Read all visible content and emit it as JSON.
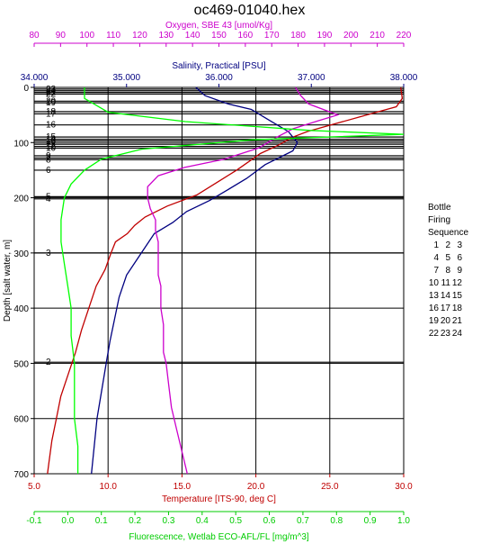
{
  "title": "oc469-01040.hex",
  "axes": {
    "oxygen": {
      "label": "Oxygen, SBE 43 [umol/Kg]",
      "range": [
        80,
        220
      ],
      "ticks": [
        80,
        90,
        100,
        110,
        120,
        130,
        140,
        150,
        160,
        170,
        180,
        190,
        200,
        210,
        220
      ],
      "color": "#cc00cc"
    },
    "salinity": {
      "label": "Salinity, Practical [PSU]",
      "range": [
        34,
        38
      ],
      "ticks": [
        "34.000",
        "35.000",
        "36.000",
        "37.000",
        "38.000"
      ],
      "color": "#000080"
    },
    "temperature": {
      "label": "Temperature [ITS-90, deg C]",
      "range": [
        5,
        30
      ],
      "ticks": [
        "5.0",
        "10.0",
        "15.0",
        "20.0",
        "25.0",
        "30.0"
      ],
      "color": "#c00000"
    },
    "fluorescence": {
      "label": "Fluorescence, Wetlab ECO-AFL/FL [mg/m^3]",
      "range": [
        -0.1,
        1.0
      ],
      "ticks": [
        "-0.1",
        "0.0",
        "0.1",
        "0.2",
        "0.3",
        "0.4",
        "0.5",
        "0.6",
        "0.7",
        "0.8",
        "0.9",
        "1.0"
      ],
      "color": "#00cc00"
    },
    "depth": {
      "label": "Depth [salt water, m]",
      "range": [
        0,
        700
      ],
      "ticks": [
        0,
        100,
        200,
        300,
        400,
        500,
        600,
        700
      ]
    }
  },
  "bottle_markers": [
    {
      "label": "23",
      "depth": 3
    },
    {
      "label": "24",
      "depth": 6
    },
    {
      "label": "21",
      "depth": 9
    },
    {
      "label": "22",
      "depth": 12
    },
    {
      "label": "20",
      "depth": 25
    },
    {
      "label": "19",
      "depth": 28
    },
    {
      "label": "18",
      "depth": 44
    },
    {
      "label": "17",
      "depth": 48
    },
    {
      "label": "16",
      "depth": 68
    },
    {
      "label": "15",
      "depth": 90
    },
    {
      "label": "14",
      "depth": 94
    },
    {
      "label": "13",
      "depth": 97
    },
    {
      "label": "11",
      "depth": 103
    },
    {
      "label": "12",
      "depth": 107
    },
    {
      "label": "10",
      "depth": 110
    },
    {
      "label": "9",
      "depth": 124
    },
    {
      "label": "7",
      "depth": 128
    },
    {
      "label": "8",
      "depth": 131
    },
    {
      "label": "6",
      "depth": 150
    },
    {
      "label": "5",
      "depth": 198
    },
    {
      "label": "4",
      "depth": 202
    },
    {
      "label": "3",
      "depth": 300
    },
    {
      "label": "2",
      "depth": 498
    }
  ],
  "legend": {
    "title_lines": [
      "Bottle",
      "Firing",
      "Sequence"
    ],
    "rows": [
      [
        "1",
        "2",
        "3"
      ],
      [
        "4",
        "5",
        "6"
      ],
      [
        "7",
        "8",
        "9"
      ],
      [
        "10",
        "11",
        "12"
      ],
      [
        "13",
        "14",
        "15"
      ],
      [
        "16",
        "17",
        "18"
      ],
      [
        "19",
        "20",
        "21"
      ],
      [
        "22",
        "23",
        "24"
      ]
    ]
  },
  "chart_data": {
    "type": "line",
    "y_axis": "depth",
    "ylim": [
      0,
      700
    ],
    "y_inverted": true,
    "grid": true,
    "series": [
      {
        "axis": "temperature",
        "color": "#c00000",
        "points": [
          [
            29.8,
            0
          ],
          [
            29.9,
            20
          ],
          [
            29.5,
            35
          ],
          [
            27.5,
            50
          ],
          [
            25.5,
            65
          ],
          [
            23.5,
            80
          ],
          [
            22.5,
            90
          ],
          [
            21.5,
            105
          ],
          [
            20.3,
            120
          ],
          [
            19.5,
            135
          ],
          [
            18.7,
            150
          ],
          [
            17.5,
            170
          ],
          [
            16.0,
            195
          ],
          [
            14.0,
            215
          ],
          [
            12.5,
            235
          ],
          [
            11.8,
            250
          ],
          [
            11.3,
            265
          ],
          [
            10.5,
            280
          ],
          [
            10.2,
            300
          ],
          [
            9.8,
            330
          ],
          [
            9.2,
            360
          ],
          [
            8.7,
            400
          ],
          [
            8.2,
            440
          ],
          [
            7.8,
            480
          ],
          [
            7.3,
            520
          ],
          [
            6.8,
            560
          ],
          [
            6.5,
            600
          ],
          [
            6.2,
            640
          ],
          [
            6.0,
            680
          ],
          [
            5.9,
            700
          ]
        ]
      },
      {
        "axis": "salinity",
        "color": "#000080",
        "points": [
          [
            35.75,
            0
          ],
          [
            35.85,
            15
          ],
          [
            36.1,
            30
          ],
          [
            36.35,
            40
          ],
          [
            36.55,
            60
          ],
          [
            36.75,
            80
          ],
          [
            36.85,
            100
          ],
          [
            36.8,
            115
          ],
          [
            36.5,
            140
          ],
          [
            36.3,
            165
          ],
          [
            36.1,
            185
          ],
          [
            35.9,
            205
          ],
          [
            35.65,
            225
          ],
          [
            35.5,
            245
          ],
          [
            35.3,
            265
          ],
          [
            35.2,
            290
          ],
          [
            35.12,
            310
          ],
          [
            35.0,
            340
          ],
          [
            34.92,
            380
          ],
          [
            34.87,
            420
          ],
          [
            34.82,
            460
          ],
          [
            34.78,
            500
          ],
          [
            34.73,
            550
          ],
          [
            34.68,
            600
          ],
          [
            34.65,
            650
          ],
          [
            34.62,
            700
          ]
        ]
      },
      {
        "axis": "oxygen",
        "color": "#cc00cc",
        "points": [
          [
            179,
            0
          ],
          [
            181,
            15
          ],
          [
            184,
            30
          ],
          [
            195,
            50
          ],
          [
            188,
            60
          ],
          [
            178,
            75
          ],
          [
            172,
            90
          ],
          [
            165,
            110
          ],
          [
            152,
            130
          ],
          [
            137,
            145
          ],
          [
            127,
            160
          ],
          [
            123,
            180
          ],
          [
            123,
            200
          ],
          [
            124,
            220
          ],
          [
            126,
            240
          ],
          [
            126,
            260
          ],
          [
            127,
            280
          ],
          [
            127,
            300
          ],
          [
            127,
            320
          ],
          [
            127,
            340
          ],
          [
            128,
            360
          ],
          [
            128,
            380
          ],
          [
            128,
            400
          ],
          [
            129,
            430
          ],
          [
            129,
            460
          ],
          [
            129,
            480
          ],
          [
            130,
            500
          ],
          [
            131,
            540
          ],
          [
            132,
            580
          ],
          [
            134,
            620
          ],
          [
            136,
            660
          ],
          [
            138,
            700
          ]
        ]
      },
      {
        "axis": "fluorescence",
        "color": "#00ff00",
        "points": [
          [
            0.05,
            0
          ],
          [
            0.05,
            20
          ],
          [
            0.12,
            45
          ],
          [
            0.35,
            62
          ],
          [
            0.72,
            78
          ],
          [
            1.0,
            85
          ],
          [
            0.55,
            95
          ],
          [
            0.22,
            112
          ],
          [
            0.1,
            130
          ],
          [
            0.05,
            150
          ],
          [
            0.01,
            175
          ],
          [
            -0.01,
            200
          ],
          [
            -0.02,
            240
          ],
          [
            -0.02,
            280
          ],
          [
            -0.01,
            320
          ],
          [
            0.0,
            360
          ],
          [
            0.01,
            400
          ],
          [
            0.01,
            450
          ],
          [
            0.02,
            500
          ],
          [
            0.02,
            550
          ],
          [
            0.02,
            600
          ],
          [
            0.03,
            650
          ],
          [
            0.03,
            700
          ]
        ]
      }
    ]
  }
}
